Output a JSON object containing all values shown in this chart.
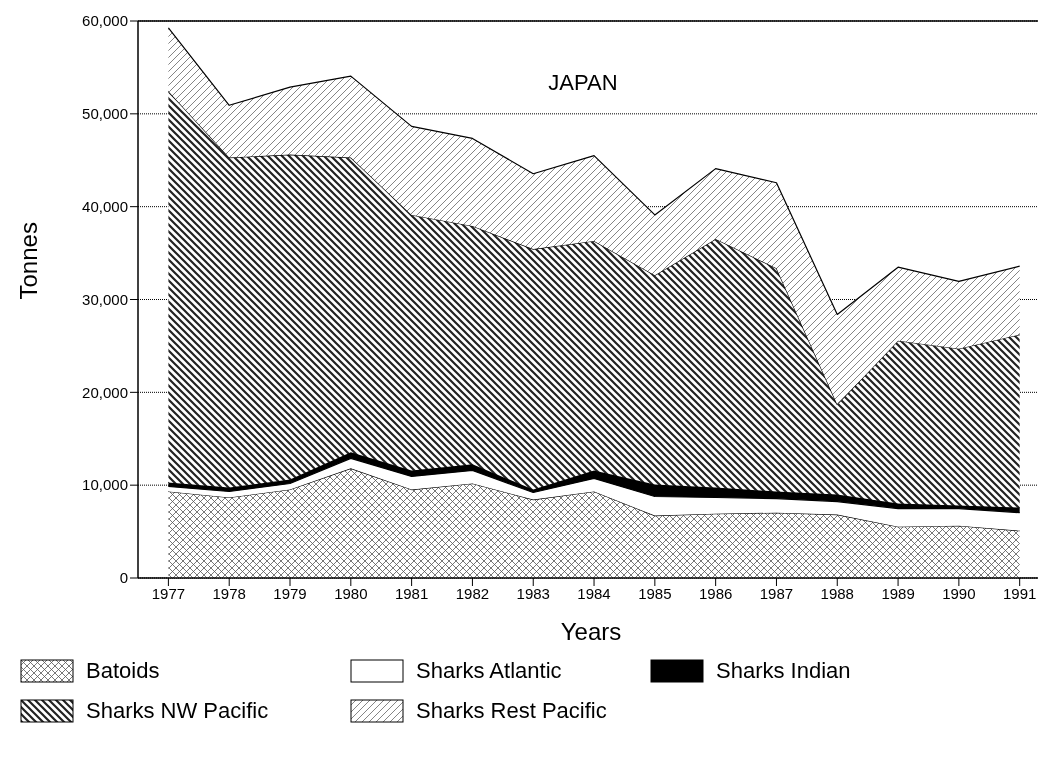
{
  "chart_data": {
    "type": "area",
    "title": "JAPAN",
    "xlabel": "Years",
    "ylabel": "Tonnes",
    "stacked": true,
    "x": [
      1977,
      1978,
      1979,
      1980,
      1981,
      1982,
      1983,
      1984,
      1985,
      1986,
      1987,
      1988,
      1989,
      1990,
      1991
    ],
    "series": [
      {
        "name": "Batoids",
        "color": "#555555",
        "values": [
          9320,
          8670,
          9530,
          11810,
          9530,
          10180,
          8450,
          9320,
          6720,
          6930,
          7040,
          6830,
          5530,
          5630,
          5090
        ]
      },
      {
        "name": "Sharks Atlantic",
        "color": "#ffffff",
        "values": [
          540,
          650,
          650,
          1080,
          1410,
          1410,
          760,
          1410,
          2060,
          1740,
          1520,
          1400,
          1950,
          1850,
          1950
        ]
      },
      {
        "name": "Sharks Indian",
        "color": "#000000",
        "values": [
          430,
          430,
          440,
          650,
          650,
          650,
          320,
          860,
          1300,
          1080,
          760,
          760,
          540,
          320,
          540
        ]
      },
      {
        "name": "Sharks NW Pacific",
        "color": "#222222",
        "values": [
          42150,
          35540,
          34990,
          31750,
          27520,
          25680,
          25900,
          24710,
          22530,
          26760,
          24050,
          9710,
          17550,
          16900,
          18640
        ]
      },
      {
        "name": "Sharks Rest Pacific",
        "color": "#666666",
        "values": [
          6820,
          5630,
          7260,
          8770,
          9540,
          9430,
          8120,
          9200,
          6500,
          7590,
          9210,
          9690,
          7910,
          7260,
          7370
        ]
      }
    ],
    "xlim": [
      1976.5,
      1991.4
    ],
    "xticks": [
      1977,
      1978,
      1979,
      1980,
      1981,
      1982,
      1983,
      1984,
      1985,
      1986,
      1987,
      1988,
      1989,
      1990,
      1991
    ],
    "ylim": [
      0,
      60000
    ],
    "yticks": [
      {
        "value": 0,
        "label": "0"
      },
      {
        "value": 10000,
        "label": "10,000"
      },
      {
        "value": 20000,
        "label": "20,000"
      },
      {
        "value": 30000,
        "label": "30,000"
      },
      {
        "value": 40000,
        "label": "40,000"
      },
      {
        "value": 50000,
        "label": "50,000"
      },
      {
        "value": 60000,
        "label": "60,000"
      }
    ],
    "grid": "y",
    "legend": "bottom",
    "marker": "none",
    "line_style": "solid"
  }
}
